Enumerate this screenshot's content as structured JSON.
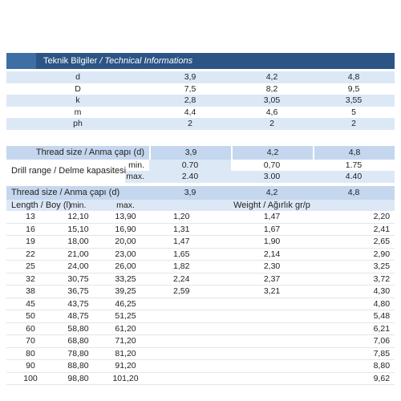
{
  "title": {
    "tr": "Teknik Bilgiler",
    "en": "/ Technical Informations"
  },
  "tech": {
    "headers": [
      "3,9",
      "4,2",
      "4,8"
    ],
    "rows": [
      {
        "label": "d",
        "values": [
          "3,9",
          "4,2",
          "4,8"
        ]
      },
      {
        "label": "D",
        "values": [
          "7,5",
          "8,2",
          "9,5"
        ]
      },
      {
        "label": "k",
        "values": [
          "2,8",
          "3,05",
          "3,55"
        ]
      },
      {
        "label": "m",
        "values": [
          "4,4",
          "4,6",
          "5"
        ]
      },
      {
        "label": "ph",
        "values": [
          "2",
          "2",
          "2"
        ]
      }
    ]
  },
  "drill": {
    "thread_label": "Thread size / Anma çapı (d)",
    "sizes": [
      "3,9",
      "4,2",
      "4,8"
    ],
    "range_label": "Drill range / Delme kapasitesi",
    "min_label": "min.",
    "max_label": "max.",
    "min": [
      "0.70",
      "0,70",
      "1.75"
    ],
    "max": [
      "2.40",
      "3.00",
      "4.40"
    ]
  },
  "weights": {
    "thread_label": "Thread size / Anma çapı (d)",
    "sizes": [
      "3,9",
      "4,2",
      "4,8"
    ],
    "length_label": "Length / Boy (l)",
    "min_label": "min.",
    "max_label": "max.",
    "weight_label": "Weight / Ağırlık gr/p",
    "rows": [
      {
        "l": "13",
        "min": "12,10",
        "max": "13,90",
        "w": [
          "1,20",
          "1,47",
          "2,20"
        ]
      },
      {
        "l": "16",
        "min": "15,10",
        "max": "16,90",
        "w": [
          "1,31",
          "1,67",
          "2,41"
        ]
      },
      {
        "l": "19",
        "min": "18,00",
        "max": "20,00",
        "w": [
          "1,47",
          "1,90",
          "2,65"
        ]
      },
      {
        "l": "22",
        "min": "21,00",
        "max": "23,00",
        "w": [
          "1,65",
          "2,14",
          "2,90"
        ]
      },
      {
        "l": "25",
        "min": "24,00",
        "max": "26,00",
        "w": [
          "1,82",
          "2,30",
          "3,25"
        ]
      },
      {
        "l": "32",
        "min": "30,75",
        "max": "33,25",
        "w": [
          "2,24",
          "2,37",
          "3,72"
        ]
      },
      {
        "l": "38",
        "min": "36,75",
        "max": "39,25",
        "w": [
          "2,59",
          "3,21",
          "4,30"
        ]
      },
      {
        "l": "45",
        "min": "43,75",
        "max": "46,25",
        "w": [
          "",
          "",
          "4,80"
        ]
      },
      {
        "l": "50",
        "min": "48,75",
        "max": "51,25",
        "w": [
          "",
          "",
          "5,48"
        ]
      },
      {
        "l": "60",
        "min": "58,80",
        "max": "61,20",
        "w": [
          "",
          "",
          "6,21"
        ]
      },
      {
        "l": "70",
        "min": "68,80",
        "max": "71,20",
        "w": [
          "",
          "",
          "7,06"
        ]
      },
      {
        "l": "80",
        "min": "78,80",
        "max": "81,20",
        "w": [
          "",
          "",
          "7,85"
        ]
      },
      {
        "l": "90",
        "min": "88,80",
        "max": "91,20",
        "w": [
          "",
          "",
          "8,80"
        ]
      },
      {
        "l": "100",
        "min": "98,80",
        "max": "101,20",
        "w": [
          "",
          "",
          "9,62"
        ]
      }
    ]
  }
}
